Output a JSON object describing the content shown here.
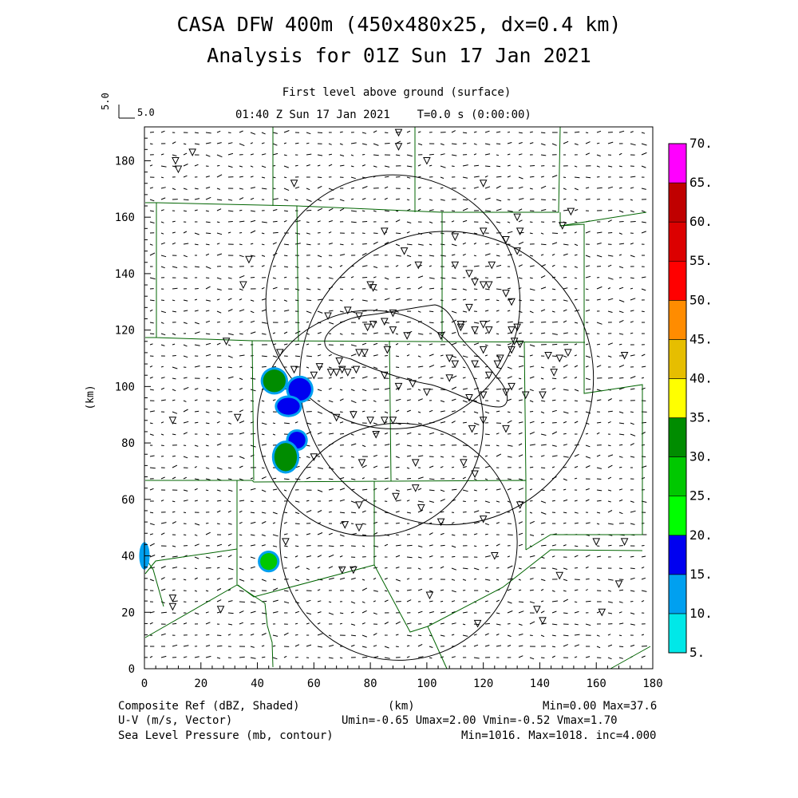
{
  "header": {
    "title_line1": "CASA DFW 400m (450x480x25, dx=0.4 km)",
    "title_line2": "Analysis for 01Z Sun 17 Jan 2021",
    "level_label": "First level above ground (surface)",
    "time_label": "01:40 Z Sun 17 Jan 2021    T=0.0 s (0:00:00)",
    "vector_ref": "5.0"
  },
  "footer": {
    "field1": "Composite Ref (dBZ, Shaded)",
    "field2": "U-V (m/s, Vector)",
    "field3": "Sea Level Pressure (mb, contour)",
    "xunit": "(km)",
    "stats1": "Min=0.00 Max=37.6",
    "stats2": "Umin=-0.65 Umax=2.00 Vmin=-0.52 Vmax=1.70",
    "stats3": "Min=1016. Max=1018. inc=4.000"
  },
  "chart_data": {
    "type": "heatmap",
    "xlabel": "",
    "ylabel": "(km)",
    "xlim": [
      0,
      180
    ],
    "ylim": [
      0,
      192
    ],
    "xticks": [
      0,
      20,
      40,
      60,
      80,
      100,
      120,
      140,
      160,
      180
    ],
    "yticks": [
      0,
      20,
      40,
      60,
      80,
      100,
      120,
      140,
      160,
      180
    ],
    "colorbar": {
      "labels": [
        "5.",
        "10.",
        "15.",
        "20.",
        "25.",
        "30.",
        "35.",
        "40.",
        "45.",
        "50.",
        "55.",
        "60.",
        "65.",
        "70."
      ],
      "colors": [
        "#00e8e8",
        "#00a0f0",
        "#0000f0",
        "#00ff00",
        "#00c800",
        "#008c00",
        "#ffff00",
        "#e6be00",
        "#ff8c00",
        "#ff0000",
        "#dc0000",
        "#c00000",
        "#ff00ff"
      ]
    },
    "radar_rings": [
      {
        "cx": 90,
        "cy": 45,
        "r": 42
      },
      {
        "cx": 107,
        "cy": 103,
        "r": 52
      },
      {
        "cx": 80,
        "cy": 87,
        "r": 40
      },
      {
        "cx": 88,
        "cy": 130,
        "r": 45
      }
    ],
    "reflectivity_cells": [
      {
        "x": 46,
        "y": 102,
        "rx": 4,
        "ry": 4,
        "dbz": 30
      },
      {
        "x": 55,
        "y": 99,
        "rx": 4,
        "ry": 4,
        "dbz": 15
      },
      {
        "x": 51,
        "y": 93,
        "rx": 4,
        "ry": 3,
        "dbz": 15
      },
      {
        "x": 54,
        "y": 81,
        "rx": 3,
        "ry": 3,
        "dbz": 15
      },
      {
        "x": 50,
        "y": 75,
        "rx": 4,
        "ry": 5,
        "dbz": 30
      },
      {
        "x": 0,
        "y": 40,
        "rx": 1,
        "ry": 4,
        "dbz": 10
      },
      {
        "x": 44,
        "y": 38,
        "rx": 3,
        "ry": 3,
        "dbz": 25
      }
    ],
    "stations": [
      [
        11,
        180
      ],
      [
        17,
        183
      ],
      [
        12,
        177
      ],
      [
        53,
        172
      ],
      [
        90,
        190
      ],
      [
        90,
        185
      ],
      [
        100,
        180
      ],
      [
        120,
        172
      ],
      [
        132,
        160
      ],
      [
        151,
        162
      ],
      [
        148,
        157
      ],
      [
        85,
        155
      ],
      [
        120,
        155
      ],
      [
        128,
        152
      ],
      [
        35,
        136
      ],
      [
        37,
        145
      ],
      [
        110,
        153
      ],
      [
        133,
        155
      ],
      [
        132,
        148
      ],
      [
        92,
        148
      ],
      [
        97,
        143
      ],
      [
        110,
        143
      ],
      [
        123,
        143
      ],
      [
        115,
        140
      ],
      [
        117,
        137
      ],
      [
        120,
        136
      ],
      [
        122,
        136
      ],
      [
        128,
        133
      ],
      [
        130,
        130
      ],
      [
        80,
        136
      ],
      [
        81,
        135
      ],
      [
        115,
        128
      ],
      [
        65,
        125
      ],
      [
        72,
        127
      ],
      [
        76,
        125
      ],
      [
        81,
        122
      ],
      [
        85,
        123
      ],
      [
        88,
        126
      ],
      [
        79,
        121
      ],
      [
        88,
        120
      ],
      [
        93,
        118
      ],
      [
        105,
        118
      ],
      [
        112,
        122
      ],
      [
        117,
        120
      ],
      [
        120,
        122
      ],
      [
        122,
        120
      ],
      [
        130,
        120
      ],
      [
        132,
        121
      ],
      [
        131,
        116
      ],
      [
        133,
        115
      ],
      [
        130,
        113
      ],
      [
        120,
        113
      ],
      [
        126,
        110
      ],
      [
        125,
        108
      ],
      [
        122,
        104
      ],
      [
        117,
        108
      ],
      [
        110,
        108
      ],
      [
        108,
        110
      ],
      [
        86,
        113
      ],
      [
        78,
        112
      ],
      [
        76,
        112
      ],
      [
        69,
        109
      ],
      [
        70,
        106
      ],
      [
        72,
        105
      ],
      [
        75,
        106
      ],
      [
        85,
        104
      ],
      [
        95,
        101
      ],
      [
        108,
        103
      ],
      [
        115,
        96
      ],
      [
        120,
        97
      ],
      [
        128,
        98
      ],
      [
        130,
        100
      ],
      [
        135,
        97
      ],
      [
        141,
        97
      ],
      [
        145,
        105
      ],
      [
        147,
        110
      ],
      [
        143,
        111
      ],
      [
        150,
        112
      ],
      [
        170,
        111
      ],
      [
        112,
        121
      ],
      [
        29,
        116
      ],
      [
        48,
        112
      ],
      [
        53,
        106
      ],
      [
        62,
        107
      ],
      [
        66,
        105
      ],
      [
        68,
        105
      ],
      [
        90,
        100
      ],
      [
        100,
        98
      ],
      [
        120,
        88
      ],
      [
        116,
        85
      ],
      [
        128,
        85
      ],
      [
        10,
        88
      ],
      [
        33,
        89
      ],
      [
        68,
        89
      ],
      [
        74,
        90
      ],
      [
        80,
        88
      ],
      [
        85,
        88
      ],
      [
        88,
        88
      ],
      [
        82,
        83
      ],
      [
        60,
        75
      ],
      [
        77,
        73
      ],
      [
        96,
        73
      ],
      [
        113,
        73
      ],
      [
        117,
        69
      ],
      [
        76,
        58
      ],
      [
        89,
        61
      ],
      [
        96,
        64
      ],
      [
        98,
        57
      ],
      [
        105,
        52
      ],
      [
        120,
        53
      ],
      [
        133,
        58
      ],
      [
        124,
        40
      ],
      [
        71,
        51
      ],
      [
        76,
        50
      ],
      [
        70,
        35
      ],
      [
        74,
        35
      ],
      [
        10,
        22
      ],
      [
        27,
        21
      ],
      [
        101,
        26
      ],
      [
        118,
        16
      ],
      [
        139,
        21
      ],
      [
        141,
        17
      ],
      [
        162,
        20
      ],
      [
        170,
        45
      ],
      [
        147,
        33
      ],
      [
        168,
        30
      ],
      [
        10,
        25
      ],
      [
        50,
        45
      ],
      [
        160,
        45
      ],
      [
        60,
        104
      ]
    ]
  }
}
